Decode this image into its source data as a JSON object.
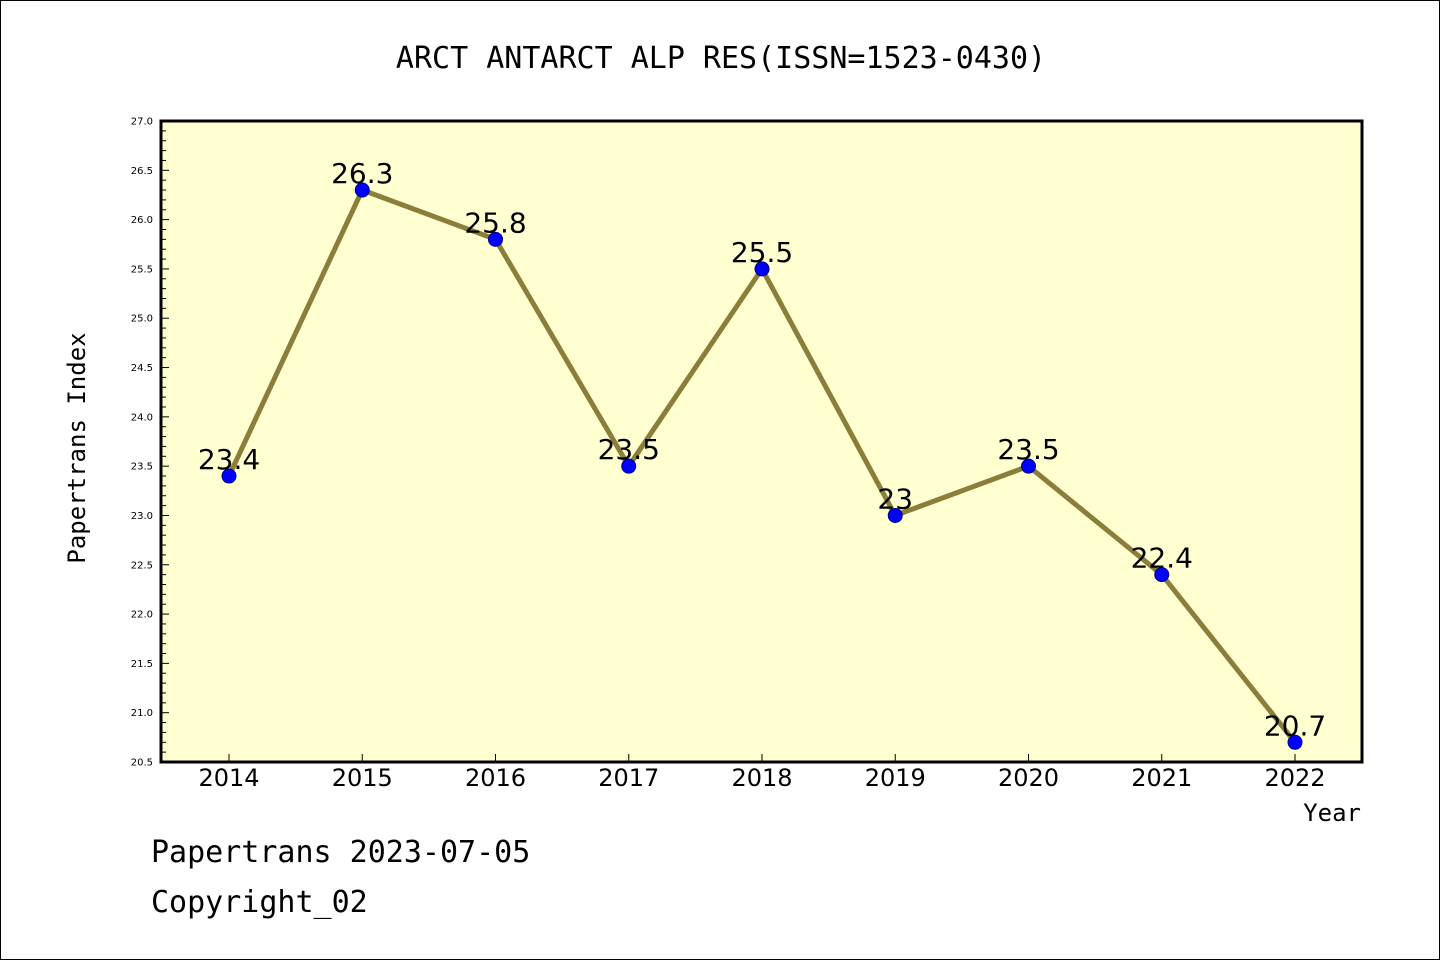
{
  "chart_data": {
    "type": "line",
    "title": "ARCT ANTARCT ALP RES(ISSN=1523-0430)",
    "xlabel": "Year",
    "ylabel": "Papertrans Index",
    "x": [
      "2014",
      "2015",
      "2016",
      "2017",
      "2018",
      "2019",
      "2020",
      "2021",
      "2022"
    ],
    "series": [
      {
        "values": [
          23.4,
          26.3,
          25.8,
          23.5,
          25.5,
          23.0,
          23.5,
          22.4,
          20.7
        ],
        "labels": [
          "23.4",
          "26.3",
          "25.8",
          "23.5",
          "25.5",
          "23",
          "23.5",
          "22.4",
          "20.7"
        ]
      }
    ],
    "ylim": [
      20.5,
      27.0
    ],
    "y_ticks": [
      "20.5",
      "21.0",
      "21.5",
      "22.0",
      "22.5",
      "23.0",
      "23.5",
      "24.0",
      "24.5",
      "25.0",
      "25.5",
      "26.0",
      "26.5",
      "27.0"
    ],
    "grid": false,
    "colors": {
      "plot_background": "#ffffd0",
      "line": "#8b7d3a",
      "marker": "#0000ff",
      "marker_edge": "#000080"
    }
  },
  "footer": {
    "source": "Papertrans 2023-07-05",
    "copyright": "Copyright_02"
  }
}
